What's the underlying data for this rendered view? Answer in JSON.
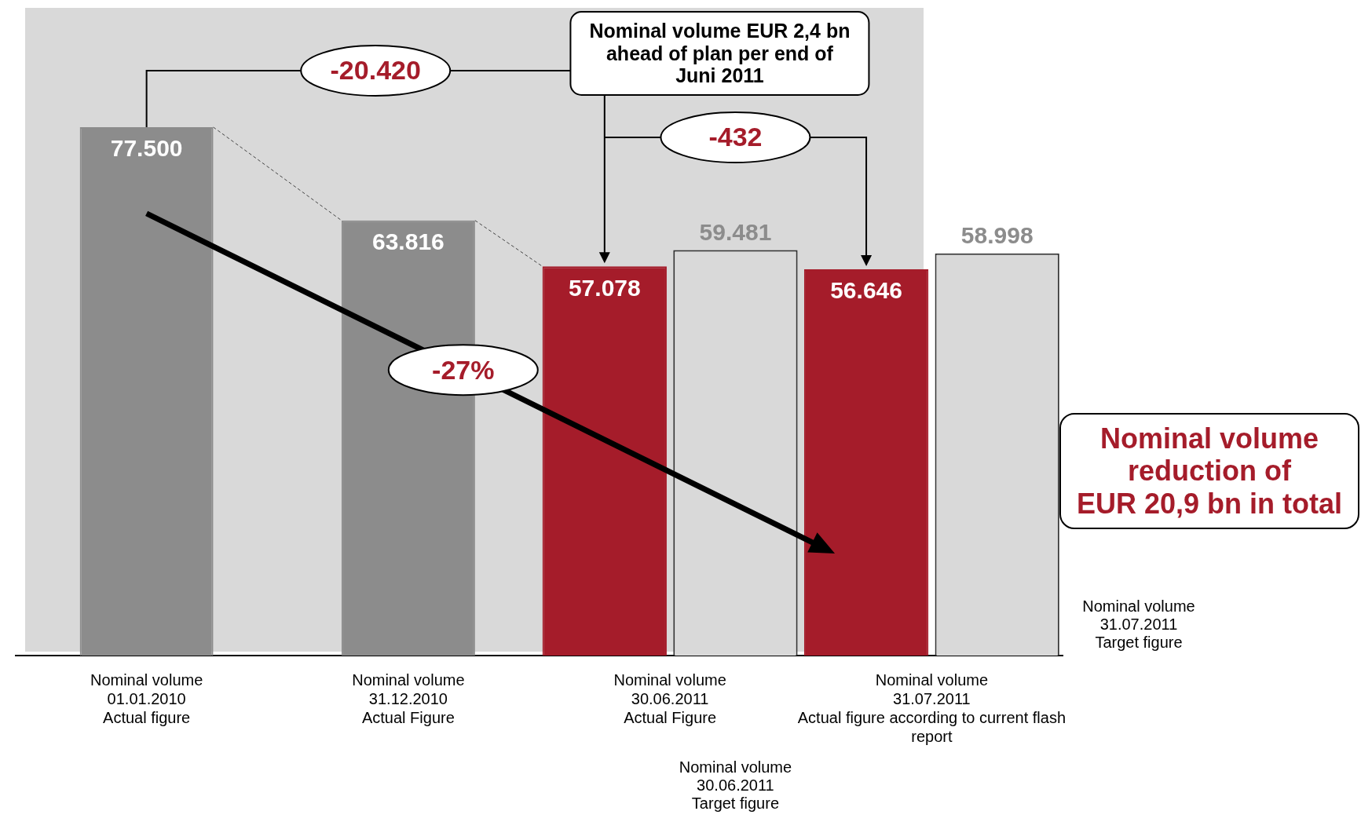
{
  "chart_data": {
    "type": "bar",
    "categories": [
      "Nominal volume\n01.01.2010\nActual figure",
      "Nominal volume\n31.12.2010\nActual Figure",
      "Nominal volume\n30.06.2011\nActual Figure",
      "Nominal volume\n31.07.2011\nActual figure according to current flash\nreport"
    ],
    "series": [
      {
        "colors": [
          "#8c8c8c",
          "#8c8c8c",
          "#a51c2a",
          "#a51c2a"
        ],
        "values": [
          77500,
          63816,
          57078,
          56646
        ],
        "value_labels": [
          "77.500",
          "63.816",
          "57.078",
          "56.646"
        ]
      },
      {
        "color": "#d9d9d9",
        "values": [
          null,
          null,
          59481,
          58998
        ],
        "value_labels": [
          null,
          null,
          "59.481",
          "58.998"
        ]
      }
    ],
    "ylim": [
      0,
      95000
    ],
    "grid": false,
    "legend": false,
    "tick_labels": "x",
    "annotations": [
      "-20.420",
      "-432",
      "-27%",
      "Nominal volume EUR 2,4 bn\nahead of plan per end of\nJuni 2011",
      "Nominal volume\nreduction of\nEUR 20,9 bn in total",
      "Nominal volume\n30.06.2011\nTarget figure",
      "Nominal volume\n31.07.2011\nTarget figure"
    ]
  }
}
